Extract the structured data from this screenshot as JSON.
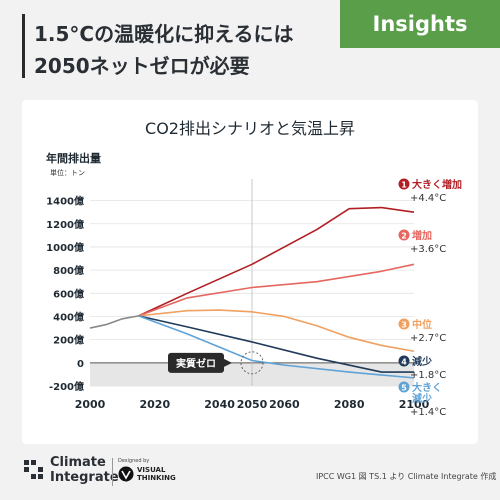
{
  "header": {
    "title_line1": "1.5°Cの温暖化に抑えるには",
    "title_line2": "2050ネットゼロが必要",
    "badge": "Insights"
  },
  "chart_data": {
    "type": "line",
    "title": "CO2排出シナリオと気温上昇",
    "ylabel": "年間排出量",
    "yunit": "単位：トン",
    "ylim": [
      -200,
      1500
    ],
    "xlim": [
      2000,
      2100
    ],
    "yticks": [
      {
        "value": 1400,
        "label": "1400億"
      },
      {
        "value": 1200,
        "label": "1200億"
      },
      {
        "value": 1000,
        "label": "1000億"
      },
      {
        "value": 800,
        "label": "800億"
      },
      {
        "value": 600,
        "label": "600億"
      },
      {
        "value": 400,
        "label": "400億"
      },
      {
        "value": 200,
        "label": "200億"
      },
      {
        "value": 0,
        "label": "0"
      },
      {
        "value": -200,
        "label": "-200億"
      }
    ],
    "xticks": [
      {
        "value": 2000,
        "label": "2000"
      },
      {
        "value": 2020,
        "label": "2020"
      },
      {
        "value": 2040,
        "label": "2040"
      },
      {
        "value": 2050,
        "label": "2050"
      },
      {
        "value": 2060,
        "label": "2060"
      },
      {
        "value": 2080,
        "label": "2080"
      },
      {
        "value": 2100,
        "label": "2100"
      }
    ],
    "historical": {
      "color": "#888888",
      "x": [
        2000,
        2005,
        2010,
        2015
      ],
      "y": [
        300,
        330,
        380,
        405
      ]
    },
    "net_zero_label": "実質ゼロ",
    "net_zero_year": 2050,
    "series": [
      {
        "num": "1",
        "name": "大きく増加",
        "temp": "+4.4°C",
        "color": "#b11f24",
        "x": [
          2015,
          2030,
          2050,
          2070,
          2080,
          2090,
          2100
        ],
        "y": [
          405,
          600,
          850,
          1150,
          1330,
          1340,
          1300
        ]
      },
      {
        "num": "2",
        "name": "増加",
        "temp": "+3.6°C",
        "color": "#e5675f",
        "x": [
          2015,
          2030,
          2050,
          2070,
          2090,
          2100
        ],
        "y": [
          405,
          560,
          650,
          700,
          790,
          850
        ]
      },
      {
        "num": "3",
        "name": "中位",
        "temp": "+2.7°C",
        "color": "#f0a060",
        "x": [
          2015,
          2030,
          2040,
          2050,
          2060,
          2070,
          2080,
          2090,
          2100
        ],
        "y": [
          405,
          450,
          455,
          440,
          400,
          320,
          220,
          150,
          100
        ]
      },
      {
        "num": "4",
        "name": "減少",
        "temp": "+1.8°C",
        "color": "#1f3a5a",
        "x": [
          2015,
          2030,
          2050,
          2070,
          2090,
          2100
        ],
        "y": [
          405,
          310,
          180,
          40,
          -80,
          -80
        ]
      },
      {
        "num": "5",
        "name": "大きく\n減少",
        "temp": "+1.4°C",
        "color": "#5fa3d6",
        "x": [
          2015,
          2030,
          2050,
          2060,
          2080,
          2100
        ],
        "y": [
          405,
          250,
          20,
          -20,
          -80,
          -130
        ]
      }
    ]
  },
  "footer": {
    "logo_line1": "Climate",
    "logo_line2": "Integrate",
    "designed_by": "Designed by",
    "vt_line1": "VISUAL",
    "vt_line2": "THINKING",
    "source": "IPCC WG1 図 TS.1 より Climate Integrate 作成"
  }
}
